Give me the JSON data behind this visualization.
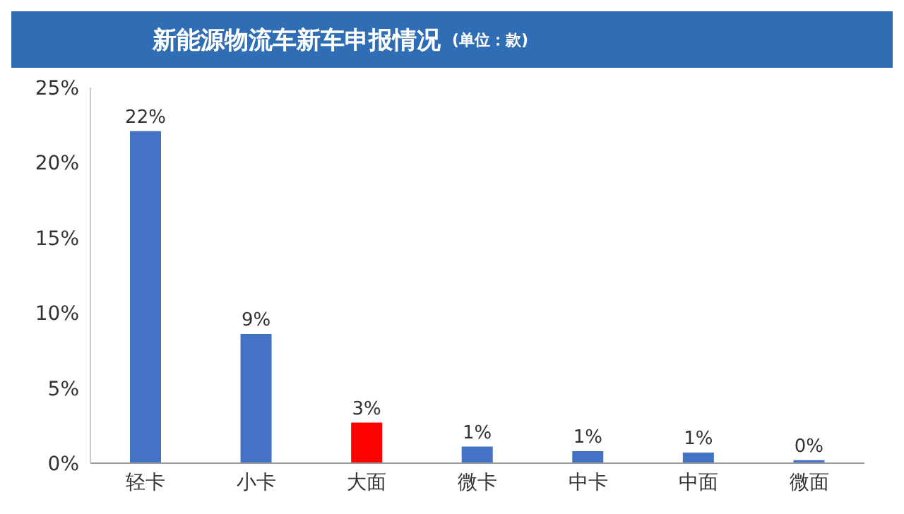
{
  "chart_data": {
    "type": "bar",
    "title": "新能源物流车新车申报情况",
    "subtitle": "(单位：款)",
    "categories": [
      "轻卡",
      "小卡",
      "大面",
      "微卡",
      "中卡",
      "中面",
      "微面"
    ],
    "values": [
      22.1,
      8.6,
      2.7,
      1.1,
      0.8,
      0.7,
      0.2
    ],
    "colors": [
      "#4472c4",
      "#4472c4",
      "#ff0000",
      "#4472c4",
      "#4472c4",
      "#4472c4",
      "#4472c4"
    ],
    "value_labels": [
      "22%",
      "9%",
      "3%",
      "1%",
      "1%",
      "1%",
      "0%"
    ],
    "ylim": [
      0,
      25
    ],
    "yticks": [
      {
        "value": 0,
        "label": "0%"
      },
      {
        "value": 5,
        "label": "5%"
      },
      {
        "value": 10,
        "label": "10%"
      },
      {
        "value": 15,
        "label": "15%"
      },
      {
        "value": 20,
        "label": "20%"
      },
      {
        "value": 25,
        "label": "25%"
      }
    ],
    "grid": false,
    "legend": false
  }
}
